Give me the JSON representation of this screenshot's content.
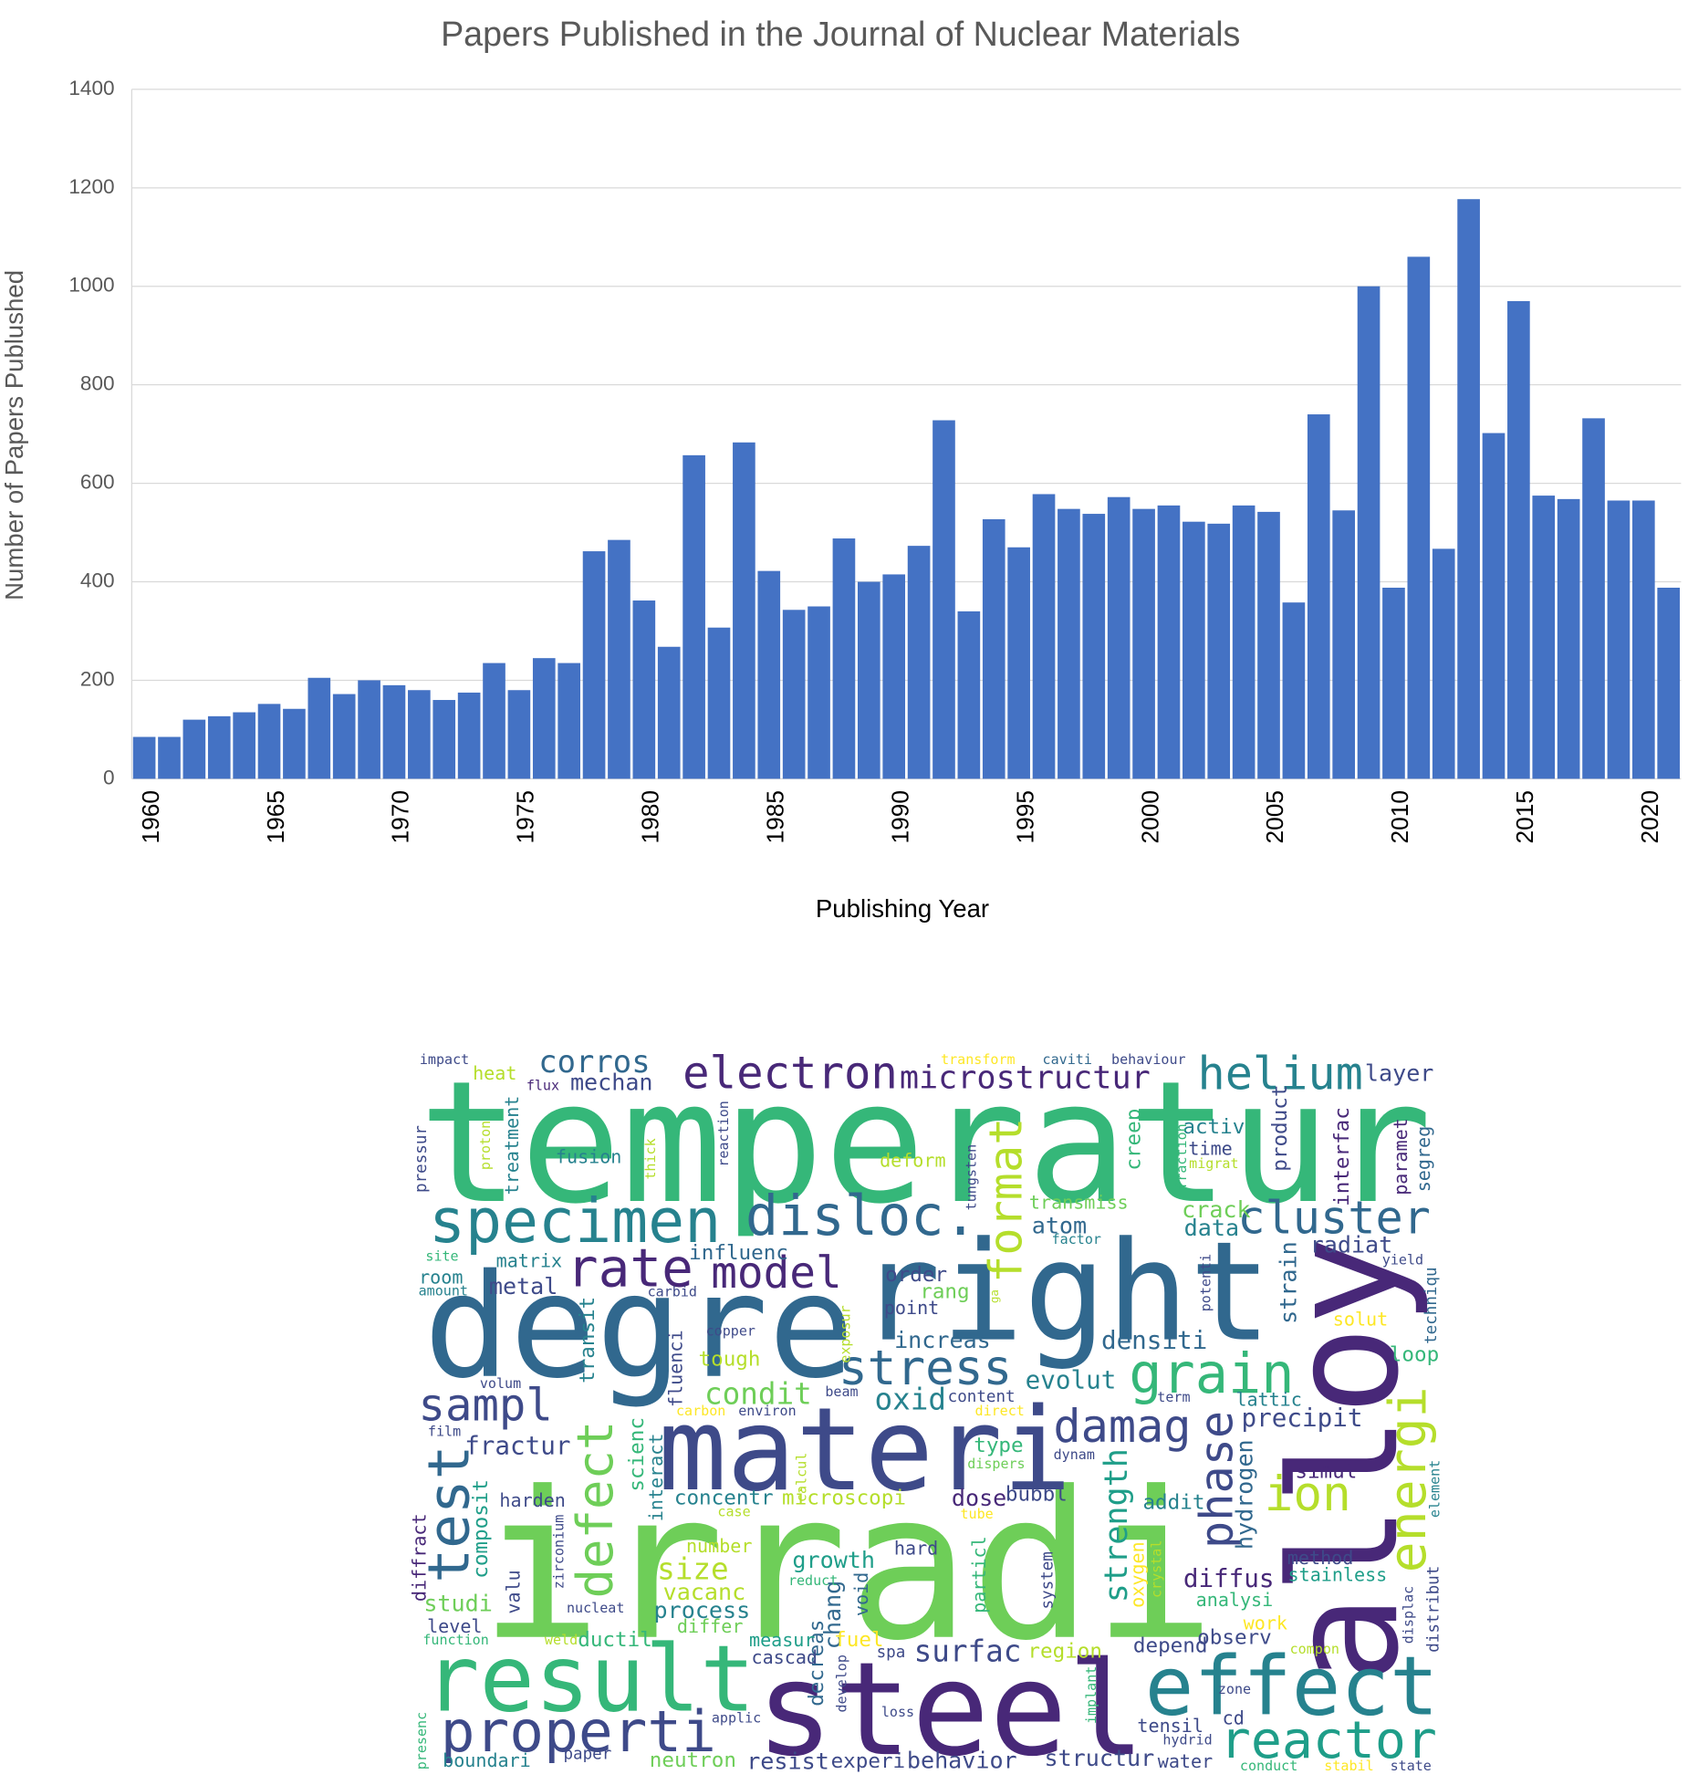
{
  "chart_data": {
    "type": "bar",
    "title": "Papers Published in the Journal of Nuclear Materials",
    "x_label": "Publishing Year",
    "y_label": "Number of Papers Publushed",
    "x": [
      1960,
      1961,
      1962,
      1963,
      1964,
      1965,
      1966,
      1967,
      1968,
      1969,
      1970,
      1971,
      1972,
      1973,
      1974,
      1975,
      1976,
      1977,
      1978,
      1979,
      1980,
      1981,
      1982,
      1983,
      1984,
      1985,
      1986,
      1987,
      1988,
      1989,
      1990,
      1991,
      1992,
      1993,
      1994,
      1995,
      1996,
      1997,
      1998,
      1999,
      2000,
      2001,
      2002,
      2003,
      2004,
      2005,
      2006,
      2007,
      2008,
      2009,
      2010,
      2011,
      2012,
      2013,
      2014,
      2015,
      2016,
      2017,
      2018,
      2019,
      2020,
      2021
    ],
    "values": [
      85,
      85,
      120,
      127,
      135,
      152,
      142,
      205,
      172,
      200,
      190,
      180,
      160,
      175,
      235,
      180,
      245,
      235,
      462,
      485,
      362,
      268,
      657,
      307,
      683,
      422,
      343,
      350,
      488,
      400,
      415,
      473,
      728,
      340,
      527,
      470,
      578,
      548,
      538,
      572,
      548,
      555,
      522,
      518,
      555,
      542,
      358,
      740,
      545,
      1000,
      388,
      1060,
      467,
      1177,
      702,
      970,
      575,
      568,
      732,
      565,
      565,
      388
    ],
    "color": "#4472c4",
    "xlim": [
      1959.5,
      2021.5
    ],
    "xticks": [
      1960,
      1965,
      1970,
      1975,
      1980,
      1985,
      1990,
      1995,
      2000,
      2005,
      2010,
      2015,
      2020
    ],
    "ylim": [
      0,
      1400
    ],
    "yticks": [
      0,
      200,
      400,
      600,
      800,
      1000,
      1200,
      1400
    ],
    "grid": true
  },
  "word_cloud": {
    "words": [
      "temperatur",
      "degre",
      "right",
      "alloy",
      "irradi",
      "materi",
      "steel",
      "result",
      "effect",
      "properti",
      "reactor",
      "specimen",
      "disloc.",
      "cluster",
      "electron",
      "microstructur",
      "helium",
      "corros",
      "mechan",
      "heat",
      "impact",
      "flux",
      "layer",
      "transform",
      "caviti",
      "behaviour",
      "rate",
      "model",
      "format",
      "stress",
      "grain",
      "sampl",
      "test",
      "defect",
      "damag",
      "phase",
      "energi",
      "ion",
      "strength",
      "condit",
      "oxid",
      "evolut",
      "densiti",
      "increas",
      "precipit",
      "lattic",
      "fractur",
      "composit",
      "diffract",
      "harden",
      "concentr",
      "microscopi",
      "dose",
      "bubbl",
      "size",
      "growth",
      "hard",
      "vacanc",
      "process",
      "differ",
      "studi",
      "level",
      "function",
      "valu",
      "zirconium",
      "nucleat",
      "weld",
      "ductil",
      "number",
      "case",
      "chang",
      "decreas",
      "develop",
      "measur",
      "cascad",
      "fuel",
      "spa",
      "surfac",
      "region",
      "depend",
      "observ",
      "work",
      "compon",
      "method",
      "stainless",
      "diffus",
      "analysi",
      "addit",
      "hydrogen",
      "simul",
      "element",
      "particl",
      "system",
      "oxygen",
      "crystal",
      "void",
      "reduct",
      "tube",
      "type",
      "dispers",
      "dynam",
      "direct",
      "content",
      "term",
      "environ",
      "carbon",
      "beam",
      "fluenci",
      "tough",
      "copper",
      "transit",
      "scienc",
      "interact",
      "calcul",
      "film",
      "volum",
      "room",
      "amount",
      "site",
      "matrix",
      "metal",
      "influenc",
      "carbid",
      "order",
      "rang",
      "point",
      "ga",
      "exposur",
      "atom",
      "factor",
      "transmiss",
      "crack",
      "data",
      "radiat",
      "strain",
      "solut",
      "loop",
      "potenti",
      "yield",
      "techniqu",
      "segreg",
      "paramet",
      "interfac",
      "product",
      "activ",
      "time",
      "migrat",
      "fraction",
      "creep",
      "deform",
      "tungsten",
      "fusion",
      "thick",
      "reaction",
      "treatment",
      "proton",
      "pressur",
      "boundari",
      "paper",
      "neutron",
      "resist",
      "experi",
      "behavior",
      "structur",
      "water",
      "conduct",
      "stabil",
      "state",
      "tensil",
      "cd",
      "hydrid",
      "zone",
      "implant",
      "loss",
      "applic",
      "presenc",
      "displac",
      "distribut"
    ]
  }
}
